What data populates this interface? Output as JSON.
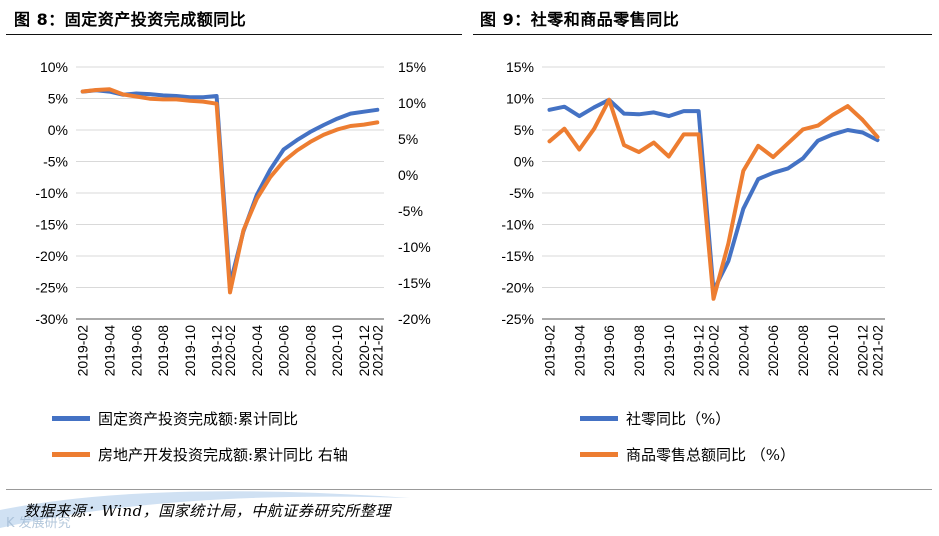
{
  "figure_left": {
    "title": "图 8：固定资产投资完成额同比"
  },
  "figure_right": {
    "title": "图 9：社零和商品零售同比"
  },
  "source_note": "数据来源：Wind，国家统计局，中航证券研究所整理",
  "watermark": "K 发展研究",
  "colors": {
    "blue": "#4472C4",
    "orange": "#ED7D31",
    "grid": "#d9d9d9",
    "axis": "#555555"
  },
  "chart_data": [
    {
      "id": "left",
      "type": "line",
      "title": "图 8：固定资产投资完成额同比",
      "categories": [
        "2019-02",
        "2019-03",
        "2019-04",
        "2019-05",
        "2019-06",
        "2019-07",
        "2019-08",
        "2019-09",
        "2019-10",
        "2019-11",
        "2019-12",
        "2020-02",
        "2020-03",
        "2020-04",
        "2020-05",
        "2020-06",
        "2020-07",
        "2020-08",
        "2020-09",
        "2020-10",
        "2020-11",
        "2020-12",
        "2021-02"
      ],
      "tick_labels": [
        "2019-02",
        "2019-04",
        "2019-06",
        "2019-08",
        "2019-10",
        "2019-12",
        "2020-02",
        "2020-04",
        "2020-06",
        "2020-08",
        "2020-10",
        "2020-12",
        "2021-02"
      ],
      "y_left": {
        "min": -30,
        "max": 10,
        "step": 5,
        "labels": [
          "10%",
          "5%",
          "0%",
          "-5%",
          "-10%",
          "-15%",
          "-20%",
          "-25%",
          "-30%"
        ]
      },
      "y_right": {
        "min": -20,
        "max": 15,
        "step": 5,
        "labels": [
          "15%",
          "10%",
          "5%",
          "0%",
          "-5%",
          "-10%",
          "-15%",
          "-20%"
        ]
      },
      "series": [
        {
          "name": "固定资产投资完成额:累计同比",
          "axis": "left",
          "color": "#4472C4",
          "values": [
            6.1,
            6.3,
            6.1,
            5.6,
            5.8,
            5.7,
            5.5,
            5.4,
            5.2,
            5.2,
            5.4,
            -24.5,
            -16.1,
            -10.3,
            -6.3,
            -3.1,
            -1.6,
            -0.3,
            0.8,
            1.8,
            2.6,
            2.9,
            3.2
          ]
        },
        {
          "name": "房地产开发投资完成额:累计同比 右轴",
          "axis": "right",
          "color": "#ED7D31",
          "values": [
            11.6,
            11.8,
            11.9,
            11.2,
            10.9,
            10.6,
            10.5,
            10.5,
            10.3,
            10.2,
            9.9,
            -16.3,
            -7.7,
            -3.3,
            -0.3,
            1.9,
            3.4,
            4.6,
            5.6,
            6.3,
            6.8,
            7.0,
            7.3
          ]
        }
      ]
    },
    {
      "id": "right",
      "type": "line",
      "title": "图 9：社零和商品零售同比",
      "categories": [
        "2019-02",
        "2019-03",
        "2019-04",
        "2019-05",
        "2019-06",
        "2019-07",
        "2019-08",
        "2019-09",
        "2019-10",
        "2019-11",
        "2019-12",
        "2020-02",
        "2020-03",
        "2020-04",
        "2020-05",
        "2020-06",
        "2020-07",
        "2020-08",
        "2020-09",
        "2020-10",
        "2020-11",
        "2020-12",
        "2021-02"
      ],
      "tick_labels": [
        "2019-02",
        "2019-04",
        "2019-06",
        "2019-08",
        "2019-10",
        "2019-12",
        "2020-02",
        "2020-04",
        "2020-06",
        "2020-08",
        "2020-10",
        "2020-12",
        "2021-02"
      ],
      "y_left": {
        "min": -25,
        "max": 15,
        "step": 5,
        "labels": [
          "15%",
          "10%",
          "5%",
          "0%",
          "-5%",
          "-10%",
          "-15%",
          "-20%",
          "-25%"
        ]
      },
      "series": [
        {
          "name": "社零同比（%）",
          "axis": "left",
          "color": "#4472C4",
          "values": [
            8.2,
            8.7,
            7.2,
            8.6,
            9.8,
            7.6,
            7.5,
            7.8,
            7.2,
            8.0,
            8.0,
            -20.5,
            -15.8,
            -7.5,
            -2.8,
            -1.8,
            -1.1,
            0.5,
            3.3,
            4.3,
            5.0,
            4.6,
            3.4
          ]
        },
        {
          "name": "商品零售总额同比 （%）",
          "axis": "left",
          "color": "#ED7D31",
          "values": [
            3.2,
            5.2,
            1.9,
            5.2,
            9.8,
            2.6,
            1.5,
            3.0,
            0.8,
            4.3,
            4.3,
            -21.8,
            -13.0,
            -1.5,
            2.5,
            0.7,
            2.9,
            5.1,
            5.7,
            7.4,
            8.8,
            6.6,
            3.9
          ]
        }
      ]
    }
  ]
}
